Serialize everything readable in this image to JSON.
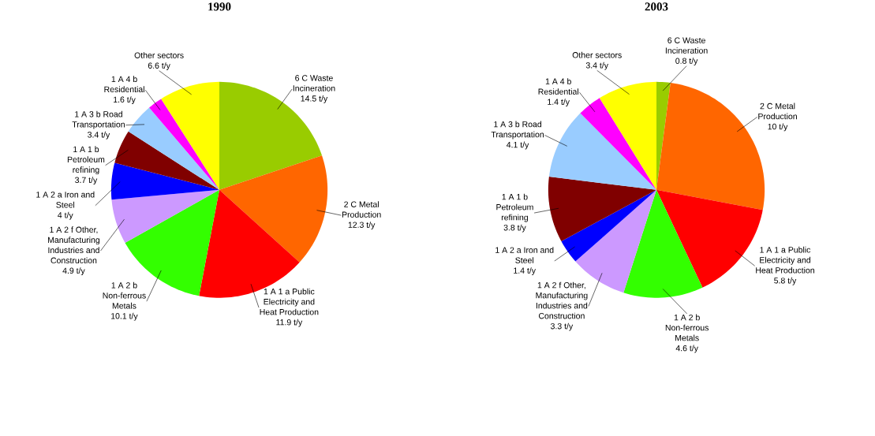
{
  "chart_data": [
    {
      "type": "pie",
      "title": "1990",
      "categories": [
        "6 C Waste Incineration",
        "2 C Metal Production",
        "1 A 1 a Public Electricity and Heat Production",
        "1 A 2 b Non-ferrous Metals",
        "1 A 2 f Other, Manufacturing Industries and Construction",
        "1 A 2 a Iron and Steel",
        "1 A 1 b Petroleum refining",
        "1 A 3 b Road Transportation",
        "1 A 4 b Residential",
        "Other sectors"
      ],
      "values": [
        14.5,
        12.3,
        11.9,
        10.1,
        4.9,
        4,
        3.7,
        3.4,
        1.6,
        6.6
      ],
      "value_labels": [
        "14.5 t/y",
        "12.3 t/y",
        "11.9 t/y",
        "10.1 t/y",
        "4.9 t/y",
        "4 t/y",
        "3.7 t/y",
        "3.4 t/y",
        "1.6 t/y",
        "6.6 t/y"
      ],
      "colors": [
        "#99cc00",
        "#ff6600",
        "#ff0000",
        "#33ff00",
        "#cc99ff",
        "#0000ff",
        "#800000",
        "#99ccff",
        "#ff00ff",
        "#ffff00"
      ]
    },
    {
      "type": "pie",
      "title": "2003",
      "categories": [
        "6 C Waste Incineration",
        "2 C Metal Production",
        "1 A 1 a Public Electricity and Heat Production",
        "1 A 2 b Non-ferrous Metals",
        "1 A 2 f Other, Manufacturing Industries and Construction",
        "1 A 2 a Iron and Steel",
        "1 A 1 b Petroleum refining",
        "1 A 3 b Road Transportation",
        "1 A 4 b Residential",
        "Other sectors"
      ],
      "values": [
        0.8,
        10,
        5.8,
        4.6,
        3.3,
        1.4,
        3.8,
        4.1,
        1.4,
        3.4
      ],
      "value_labels": [
        "0.8 t/y",
        "10 t/y",
        "5.8 t/y",
        "4.6 t/y",
        "3.3 t/y",
        "1.4 t/y",
        "3.8 t/y",
        "4.1 t/y",
        "1.4 t/y",
        "3.4 t/y"
      ],
      "colors": [
        "#99cc00",
        "#ff6600",
        "#ff0000",
        "#33ff00",
        "#cc99ff",
        "#0000ff",
        "#800000",
        "#99ccff",
        "#ff00ff",
        "#ffff00"
      ]
    }
  ]
}
